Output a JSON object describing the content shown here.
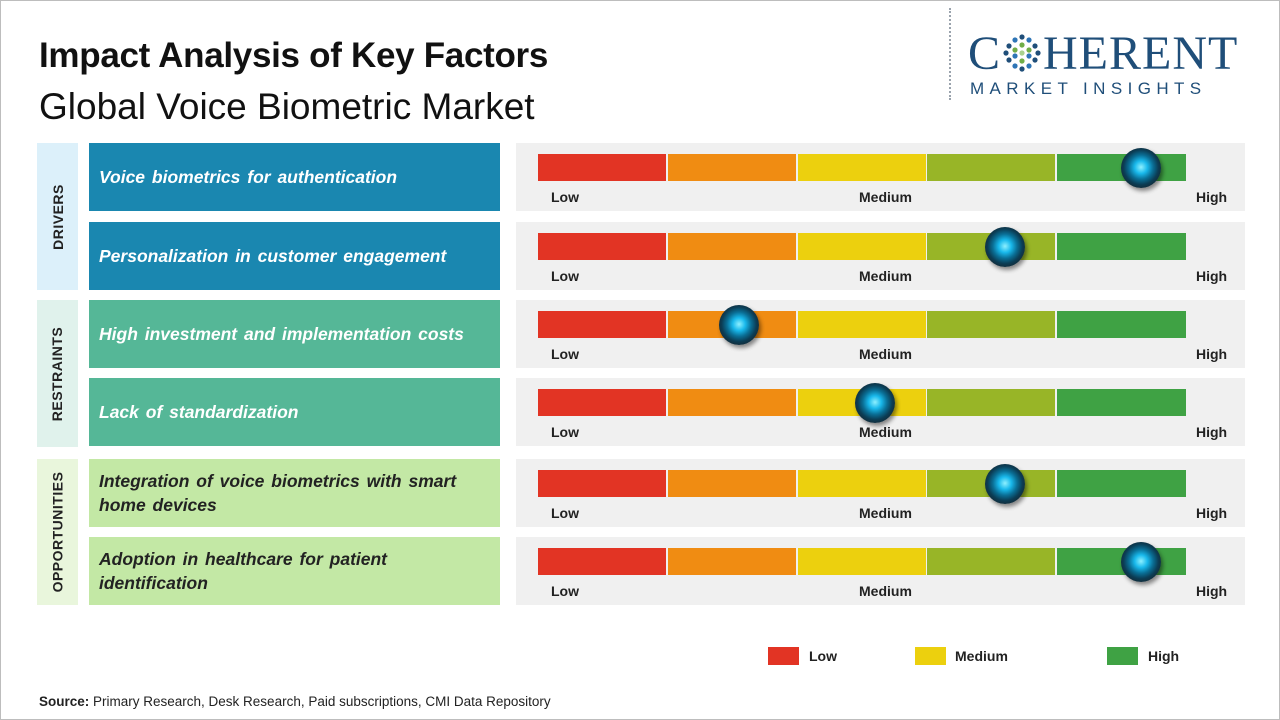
{
  "title": "Impact Analysis of Key Factors",
  "subtitle": "Global Voice Biometric Market",
  "logo": {
    "brand": "COHERENT",
    "brand_left": "C",
    "brand_right": "HERENT",
    "tagline": "MARKET INSIGHTS"
  },
  "categories": [
    {
      "label": "DRIVERS",
      "color": "#dcf0fa"
    },
    {
      "label": "RESTRAINTS",
      "color": "#e0f2ec"
    },
    {
      "label": "OPPORTUNITIES",
      "color": "#e9f6dc"
    }
  ],
  "factors": [
    {
      "text": "Voice biometrics  for authentication",
      "category": "DRIVERS",
      "color": "#1a87b0",
      "impact": 0.93
    },
    {
      "text": "Personalization  in customer engagement",
      "category": "DRIVERS",
      "color": "#1a87b0",
      "impact": 0.72
    },
    {
      "text": "High investment and implementation  costs",
      "category": "RESTRAINTS",
      "color": "#55b797",
      "impact": 0.31
    },
    {
      "text": "Lack of standardization",
      "category": "RESTRAINTS",
      "color": "#55b797",
      "impact": 0.52
    },
    {
      "text": "Integration  of voice biometrics with smart home devices",
      "category": "OPPORTUNITIES",
      "color": "#c3e8a5",
      "impact": 0.72
    },
    {
      "text": "Adoption  in healthcare for patient identification",
      "category": "OPPORTUNITIES",
      "color": "#c3e8a5",
      "impact": 0.93
    }
  ],
  "scale_labels": {
    "low": "Low",
    "medium": "Medium",
    "high": "High"
  },
  "legend": [
    {
      "label": "Low",
      "color": "#e23424"
    },
    {
      "label": "Medium",
      "color": "#ecd00e"
    },
    {
      "label": "High",
      "color": "#3fa244"
    }
  ],
  "source": {
    "label": "Source:",
    "text": " Primary Research, Desk Research, Paid subscriptions, CMI Data Repository"
  }
}
